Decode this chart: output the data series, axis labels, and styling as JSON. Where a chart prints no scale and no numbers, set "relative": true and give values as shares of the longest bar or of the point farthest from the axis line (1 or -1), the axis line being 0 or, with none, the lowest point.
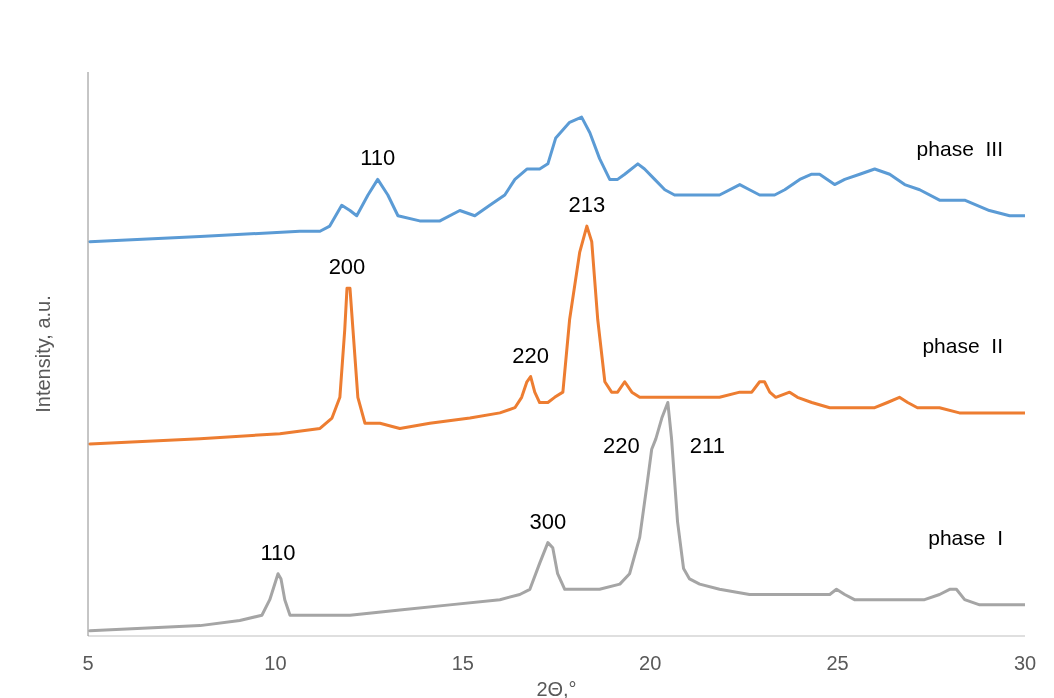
{
  "chart_data": {
    "type": "line",
    "xlabel": "2Θ,°",
    "ylabel": "Intensity, a.u.",
    "relative": true,
    "xlim": [
      5,
      30
    ],
    "xticks": [
      5,
      10,
      15,
      20,
      25,
      30
    ],
    "grid": false,
    "legend": false,
    "marker": "none",
    "line_style": "solid",
    "series": [
      {
        "name": "phase  III",
        "color": "#5b9bd5",
        "x": [
          5.05,
          7.99,
          10.65,
          11.19,
          11.45,
          11.77,
          11.99,
          12.17,
          12.47,
          12.73,
          13.0,
          13.27,
          13.85,
          14.39,
          14.92,
          15.32,
          15.72,
          16.12,
          16.39,
          16.71,
          17.05,
          17.27,
          17.48,
          17.85,
          18.17,
          18.39,
          18.65,
          18.92,
          19.13,
          19.32,
          19.67,
          19.85,
          20.12,
          20.39,
          20.65,
          20.87,
          21.32,
          21.85,
          22.39,
          22.65,
          22.92,
          23.32,
          23.59,
          23.99,
          24.31,
          24.52,
          24.92,
          25.19,
          25.59,
          25.99,
          26.39,
          26.79,
          27.19,
          27.72,
          28.39,
          29.05,
          29.59,
          30
        ],
        "values": [
          0.76,
          0.77,
          0.78,
          0.78,
          0.79,
          0.83,
          0.82,
          0.81,
          0.85,
          0.88,
          0.85,
          0.81,
          0.8,
          0.8,
          0.82,
          0.81,
          0.83,
          0.85,
          0.88,
          0.9,
          0.9,
          0.91,
          0.96,
          0.99,
          1.0,
          0.97,
          0.92,
          0.88,
          0.88,
          0.89,
          0.91,
          0.9,
          0.88,
          0.86,
          0.85,
          0.85,
          0.85,
          0.85,
          0.87,
          0.86,
          0.85,
          0.85,
          0.86,
          0.88,
          0.89,
          0.89,
          0.87,
          0.88,
          0.89,
          0.9,
          0.89,
          0.87,
          0.86,
          0.84,
          0.84,
          0.82,
          0.81,
          0.81
        ]
      },
      {
        "name": "phase  II",
        "color": "#ed7d31",
        "x": [
          5.05,
          7.99,
          10.12,
          11.19,
          11.51,
          11.72,
          11.85,
          11.91,
          11.99,
          12.07,
          12.2,
          12.39,
          12.79,
          13.32,
          14.12,
          15.19,
          15.99,
          16.39,
          16.57,
          16.71,
          16.81,
          16.92,
          17.05,
          17.27,
          17.45,
          17.67,
          17.85,
          18.12,
          18.31,
          18.44,
          18.6,
          18.79,
          18.97,
          19.13,
          19.32,
          19.51,
          19.72,
          20.79,
          21.85,
          22.39,
          22.71,
          22.92,
          23.05,
          23.19,
          23.35,
          23.72,
          23.93,
          24.31,
          24.79,
          25.53,
          25.99,
          26.33,
          26.65,
          26.87,
          27.13,
          27.72,
          28.25,
          29.05,
          30
        ],
        "values": [
          0.37,
          0.38,
          0.39,
          0.4,
          0.42,
          0.46,
          0.59,
          0.67,
          0.67,
          0.59,
          0.46,
          0.41,
          0.41,
          0.4,
          0.41,
          0.42,
          0.43,
          0.44,
          0.46,
          0.49,
          0.5,
          0.47,
          0.45,
          0.45,
          0.46,
          0.47,
          0.61,
          0.74,
          0.79,
          0.76,
          0.61,
          0.49,
          0.47,
          0.47,
          0.49,
          0.47,
          0.46,
          0.46,
          0.46,
          0.47,
          0.47,
          0.49,
          0.49,
          0.47,
          0.46,
          0.47,
          0.46,
          0.45,
          0.44,
          0.44,
          0.44,
          0.45,
          0.46,
          0.45,
          0.44,
          0.44,
          0.43,
          0.43,
          0.43
        ]
      },
      {
        "name": "phase  I",
        "color": "#a5a5a5",
        "x": [
          5.05,
          7.99,
          9.05,
          9.64,
          9.85,
          10.07,
          10.15,
          10.25,
          10.39,
          10.65,
          11.99,
          13.32,
          14.65,
          15.99,
          16.52,
          16.79,
          17.05,
          17.27,
          17.4,
          17.53,
          17.72,
          17.99,
          18.65,
          19.19,
          19.45,
          19.72,
          19.93,
          20.04,
          20.15,
          20.31,
          20.47,
          20.57,
          20.73,
          20.89,
          21.05,
          21.32,
          21.85,
          22.65,
          23.45,
          24.52,
          24.79,
          24.97,
          25.19,
          25.45,
          26.12,
          27.32,
          27.72,
          27.99,
          28.17,
          28.39,
          28.79,
          29.32,
          30
        ],
        "values": [
          0.01,
          0.02,
          0.03,
          0.04,
          0.07,
          0.12,
          0.11,
          0.07,
          0.04,
          0.04,
          0.04,
          0.05,
          0.06,
          0.07,
          0.08,
          0.09,
          0.14,
          0.18,
          0.17,
          0.12,
          0.09,
          0.09,
          0.09,
          0.1,
          0.12,
          0.19,
          0.3,
          0.36,
          0.38,
          0.42,
          0.45,
          0.38,
          0.22,
          0.13,
          0.11,
          0.1,
          0.09,
          0.08,
          0.08,
          0.08,
          0.08,
          0.09,
          0.08,
          0.07,
          0.07,
          0.07,
          0.08,
          0.09,
          0.09,
          0.07,
          0.06,
          0.06,
          0.06
        ]
      }
    ],
    "annotations": [
      {
        "text": "110",
        "x": 12.73,
        "y": 0.88
      },
      {
        "text": "200",
        "x": 11.91,
        "y": 0.67
      },
      {
        "text": "220",
        "x": 16.81,
        "y": 0.5
      },
      {
        "text": "213",
        "x": 18.31,
        "y": 0.79
      },
      {
        "text": "110",
        "x": 10.07,
        "y": 0.12
      },
      {
        "text": "300",
        "x": 17.27,
        "y": 0.18
      },
      {
        "text": "220",
        "x": 20.04,
        "y": 0.36
      },
      {
        "text": "211",
        "x": 20.47,
        "y": 0.45
      }
    ]
  }
}
